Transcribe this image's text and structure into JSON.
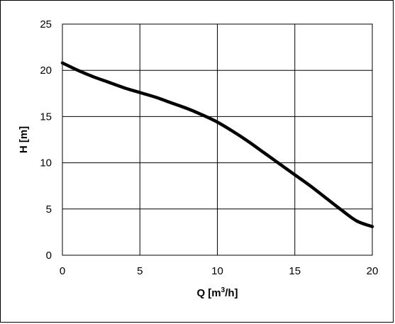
{
  "chart_data": {
    "type": "line",
    "title": "",
    "xlabel_main": "Q [m",
    "xlabel_sup": "3",
    "xlabel_tail": "/h]",
    "ylabel": "H [m]",
    "xlim": [
      0,
      20
    ],
    "ylim": [
      0,
      25
    ],
    "xticks": [
      0,
      5,
      10,
      15,
      20
    ],
    "yticks": [
      0,
      5,
      10,
      15,
      20,
      25
    ],
    "grid": true,
    "legend": "none",
    "line_color": "#000000",
    "series": [
      {
        "x": [
          0,
          1,
          2,
          3,
          4,
          5,
          6,
          7,
          8,
          9,
          10,
          11,
          12,
          13,
          14,
          15,
          16,
          17,
          18,
          19,
          20
        ],
        "y": [
          20.8,
          20.0,
          19.3,
          18.7,
          18.1,
          17.6,
          17.1,
          16.5,
          15.9,
          15.2,
          14.4,
          13.4,
          12.3,
          11.1,
          9.9,
          8.7,
          7.5,
          6.2,
          4.9,
          3.7,
          3.1
        ]
      }
    ]
  }
}
